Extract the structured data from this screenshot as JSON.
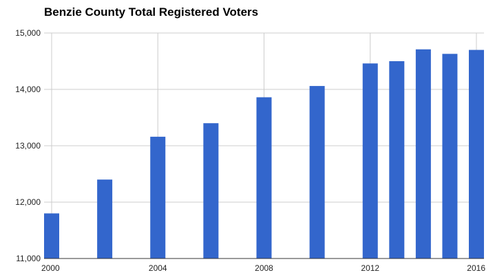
{
  "chart_data": {
    "type": "bar",
    "title": "Benzie County Total Registered Voters",
    "xlabel": "",
    "ylabel": "",
    "x": [
      2000,
      2002,
      2004,
      2006,
      2008,
      2010,
      2012,
      2013,
      2014,
      2015,
      2016
    ],
    "values": [
      11800,
      12400,
      13160,
      13400,
      13860,
      14060,
      14460,
      14500,
      14710,
      14630,
      14700
    ],
    "xlim": [
      2000,
      2016
    ],
    "ylim": [
      11000,
      15000
    ],
    "x_ticks": [
      "2000",
      "2004",
      "2008",
      "2012",
      "2016"
    ],
    "y_ticks": [
      "11,000",
      "12,000",
      "13,000",
      "14,000",
      "15,000"
    ],
    "grid": true,
    "legend": "none",
    "colors": {
      "bar": "#3366cc",
      "grid": "#cccccc",
      "baseline": "#333333"
    }
  }
}
